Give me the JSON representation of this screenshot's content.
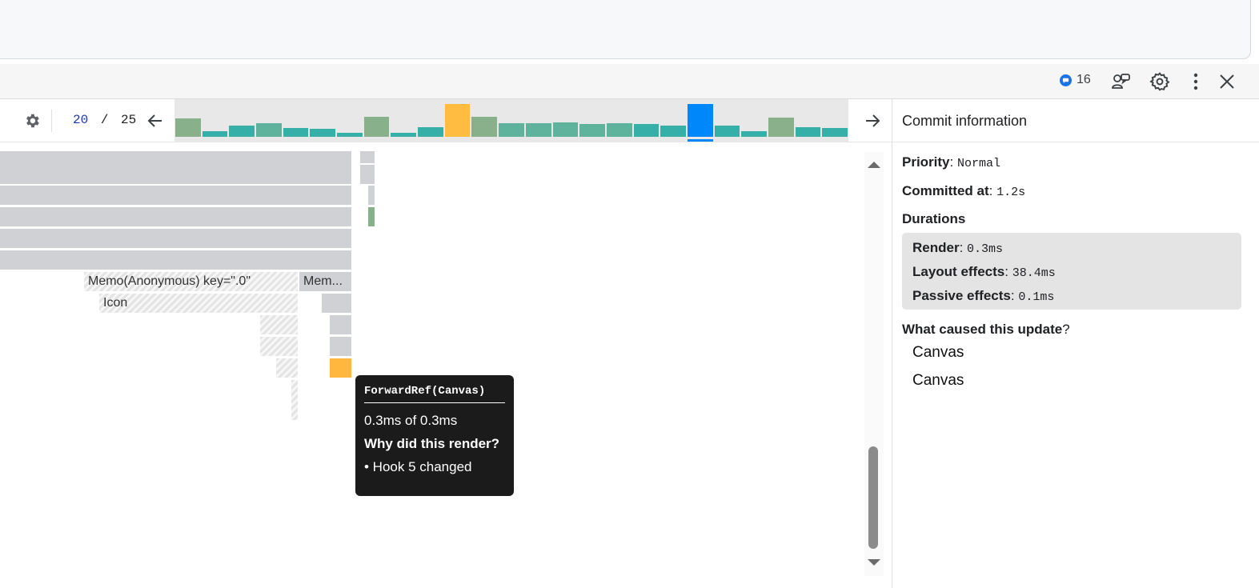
{
  "devtools": {
    "issues_count": "16"
  },
  "profiler": {
    "commit_current": "20",
    "commit_separator": "/",
    "commit_total": "25",
    "commits": [
      {
        "value": 0.55,
        "color": "#88b08a",
        "selected": false
      },
      {
        "value": 0.18,
        "color": "#37afa9",
        "selected": false
      },
      {
        "value": 0.33,
        "color": "#37afa9",
        "selected": false
      },
      {
        "value": 0.42,
        "color": "#5fb39d",
        "selected": false
      },
      {
        "value": 0.28,
        "color": "#37afa9",
        "selected": false
      },
      {
        "value": 0.25,
        "color": "#37afa9",
        "selected": false
      },
      {
        "value": 0.12,
        "color": "#37afa9",
        "selected": false
      },
      {
        "value": 0.6,
        "color": "#88b08a",
        "selected": false
      },
      {
        "value": 0.12,
        "color": "#37afa9",
        "selected": false
      },
      {
        "value": 0.3,
        "color": "#37afa9",
        "selected": false
      },
      {
        "value": 1.0,
        "color": "#ffbc40",
        "selected": false
      },
      {
        "value": 0.6,
        "color": "#88b08a",
        "selected": false
      },
      {
        "value": 0.42,
        "color": "#5fb39d",
        "selected": false
      },
      {
        "value": 0.42,
        "color": "#5fb39d",
        "selected": false
      },
      {
        "value": 0.45,
        "color": "#5fb39d",
        "selected": false
      },
      {
        "value": 0.4,
        "color": "#5fb39d",
        "selected": false
      },
      {
        "value": 0.42,
        "color": "#5fb39d",
        "selected": false
      },
      {
        "value": 0.38,
        "color": "#37afa9",
        "selected": false
      },
      {
        "value": 0.33,
        "color": "#37afa9",
        "selected": false
      },
      {
        "value": 1.0,
        "color": "#0088fa",
        "selected": true
      },
      {
        "value": 0.33,
        "color": "#37afa9",
        "selected": false
      },
      {
        "value": 0.18,
        "color": "#37afa9",
        "selected": false
      },
      {
        "value": 0.58,
        "color": "#88b08a",
        "selected": false
      },
      {
        "value": 0.3,
        "color": "#37afa9",
        "selected": false
      },
      {
        "value": 0.28,
        "color": "#37afa9",
        "selected": false
      }
    ]
  },
  "flame": {
    "memo_label": "Memo(Anonymous) key=\".0\"",
    "memo2_label": "Mem...",
    "icon_label": "Icon"
  },
  "tooltip": {
    "title": "ForwardRef(Canvas)",
    "duration": "0.3ms of 0.3ms",
    "why_heading": "Why did this render?",
    "reason": "• Hook 5 changed"
  },
  "commit_info": {
    "header": "Commit information",
    "priority_label": "Priority",
    "priority_value": "Normal",
    "committed_label": "Committed at",
    "committed_value": "1.2s",
    "durations_label": "Durations",
    "render_label": "Render",
    "render_value": "0.3ms",
    "layout_label": "Layout effects",
    "layout_value": "38.4ms",
    "passive_label": "Passive effects",
    "passive_value": "0.1ms",
    "cause_label": "What caused this update",
    "cause_q": "?",
    "causes": [
      "Canvas",
      "Canvas"
    ]
  }
}
